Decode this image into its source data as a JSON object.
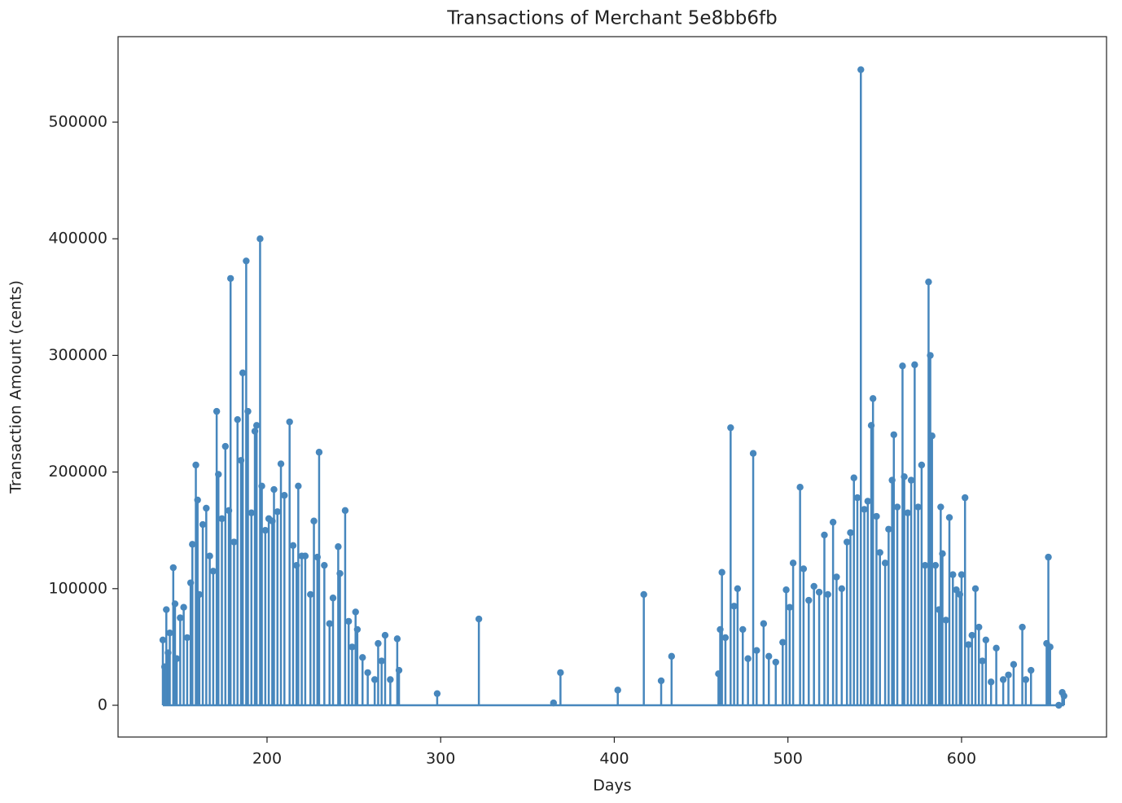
{
  "chart_data": {
    "type": "stem",
    "title": "Transactions of Merchant 5e8bb6fb",
    "xlabel": "Days",
    "ylabel": "Transaction Amount (cents)",
    "color": "#4787bd",
    "xlim": [
      114.2,
      683.5
    ],
    "xticks": [
      200,
      300,
      400,
      500,
      600
    ],
    "ylim": [
      -27234,
      573324
    ],
    "yticks": [
      0,
      100000,
      200000,
      300000,
      400000,
      500000
    ],
    "x": [
      140,
      141,
      142,
      143,
      144,
      146,
      147,
      148,
      150,
      152,
      154,
      156,
      157,
      159,
      160,
      161,
      163,
      165,
      167,
      169,
      171,
      172,
      174,
      176,
      178,
      179,
      181,
      183,
      185,
      186,
      188,
      189,
      191,
      193,
      194,
      196,
      197,
      199,
      201,
      203,
      204,
      206,
      208,
      210,
      213,
      215,
      217,
      218,
      220,
      222,
      225,
      227,
      229,
      230,
      233,
      236,
      238,
      241,
      242,
      245,
      247,
      249,
      251,
      252,
      255,
      258,
      262,
      264,
      266,
      268,
      271,
      275,
      276,
      298,
      322,
      365,
      369,
      402,
      417,
      427,
      433,
      460,
      461,
      462,
      464,
      467,
      469,
      471,
      474,
      477,
      480,
      482,
      486,
      489,
      493,
      497,
      499,
      501,
      503,
      507,
      509,
      512,
      515,
      518,
      521,
      523,
      526,
      528,
      531,
      534,
      536,
      538,
      540,
      542,
      544,
      546,
      548,
      549,
      551,
      553,
      556,
      558,
      560,
      561,
      563,
      566,
      567,
      569,
      571,
      573,
      575,
      577,
      579,
      581,
      582,
      583,
      585,
      587,
      588,
      589,
      591,
      593,
      595,
      597,
      599,
      600,
      602,
      604,
      606,
      608,
      610,
      612,
      614,
      617,
      620,
      624,
      627,
      630,
      635,
      637,
      640,
      649,
      650,
      651,
      656,
      658,
      659
    ],
    "values": [
      56000,
      33000,
      82000,
      45000,
      62000,
      118000,
      87000,
      40000,
      75000,
      84000,
      58000,
      105000,
      138000,
      206000,
      176000,
      95000,
      155000,
      169000,
      128000,
      115000,
      252000,
      198000,
      160000,
      222000,
      167000,
      366000,
      140000,
      245000,
      210000,
      285000,
      381000,
      252000,
      165000,
      235000,
      240000,
      400000,
      188000,
      150000,
      160000,
      158000,
      185000,
      166000,
      207000,
      180000,
      243000,
      137000,
      120000,
      188000,
      128000,
      128000,
      95000,
      158000,
      127000,
      217000,
      120000,
      70000,
      92000,
      136000,
      113000,
      167000,
      72000,
      50000,
      80000,
      65000,
      41000,
      28000,
      22000,
      53000,
      38000,
      60000,
      22000,
      57000,
      30000,
      10000,
      74000,
      2000,
      28000,
      13000,
      95000,
      21000,
      42000,
      27000,
      65000,
      114000,
      58000,
      238000,
      85000,
      100000,
      65000,
      40000,
      216000,
      47000,
      70000,
      42000,
      37000,
      54000,
      99000,
      84000,
      122000,
      187000,
      117000,
      90000,
      102000,
      97000,
      146000,
      95000,
      157000,
      110000,
      100000,
      140000,
      148000,
      195000,
      178000,
      545000,
      168000,
      175000,
      240000,
      263000,
      162000,
      131000,
      122000,
      151000,
      193000,
      232000,
      170000,
      291000,
      196000,
      165000,
      193000,
      292000,
      170000,
      206000,
      120000,
      363000,
      300000,
      231000,
      120000,
      82000,
      170000,
      130000,
      73000,
      161000,
      112000,
      99000,
      95000,
      112000,
      178000,
      52000,
      60000,
      100000,
      67000,
      38000,
      56000,
      20000,
      49000,
      22000,
      26000,
      35000,
      67000,
      22000,
      30000,
      53000,
      127000,
      50000,
      0,
      11000,
      8000
    ]
  }
}
